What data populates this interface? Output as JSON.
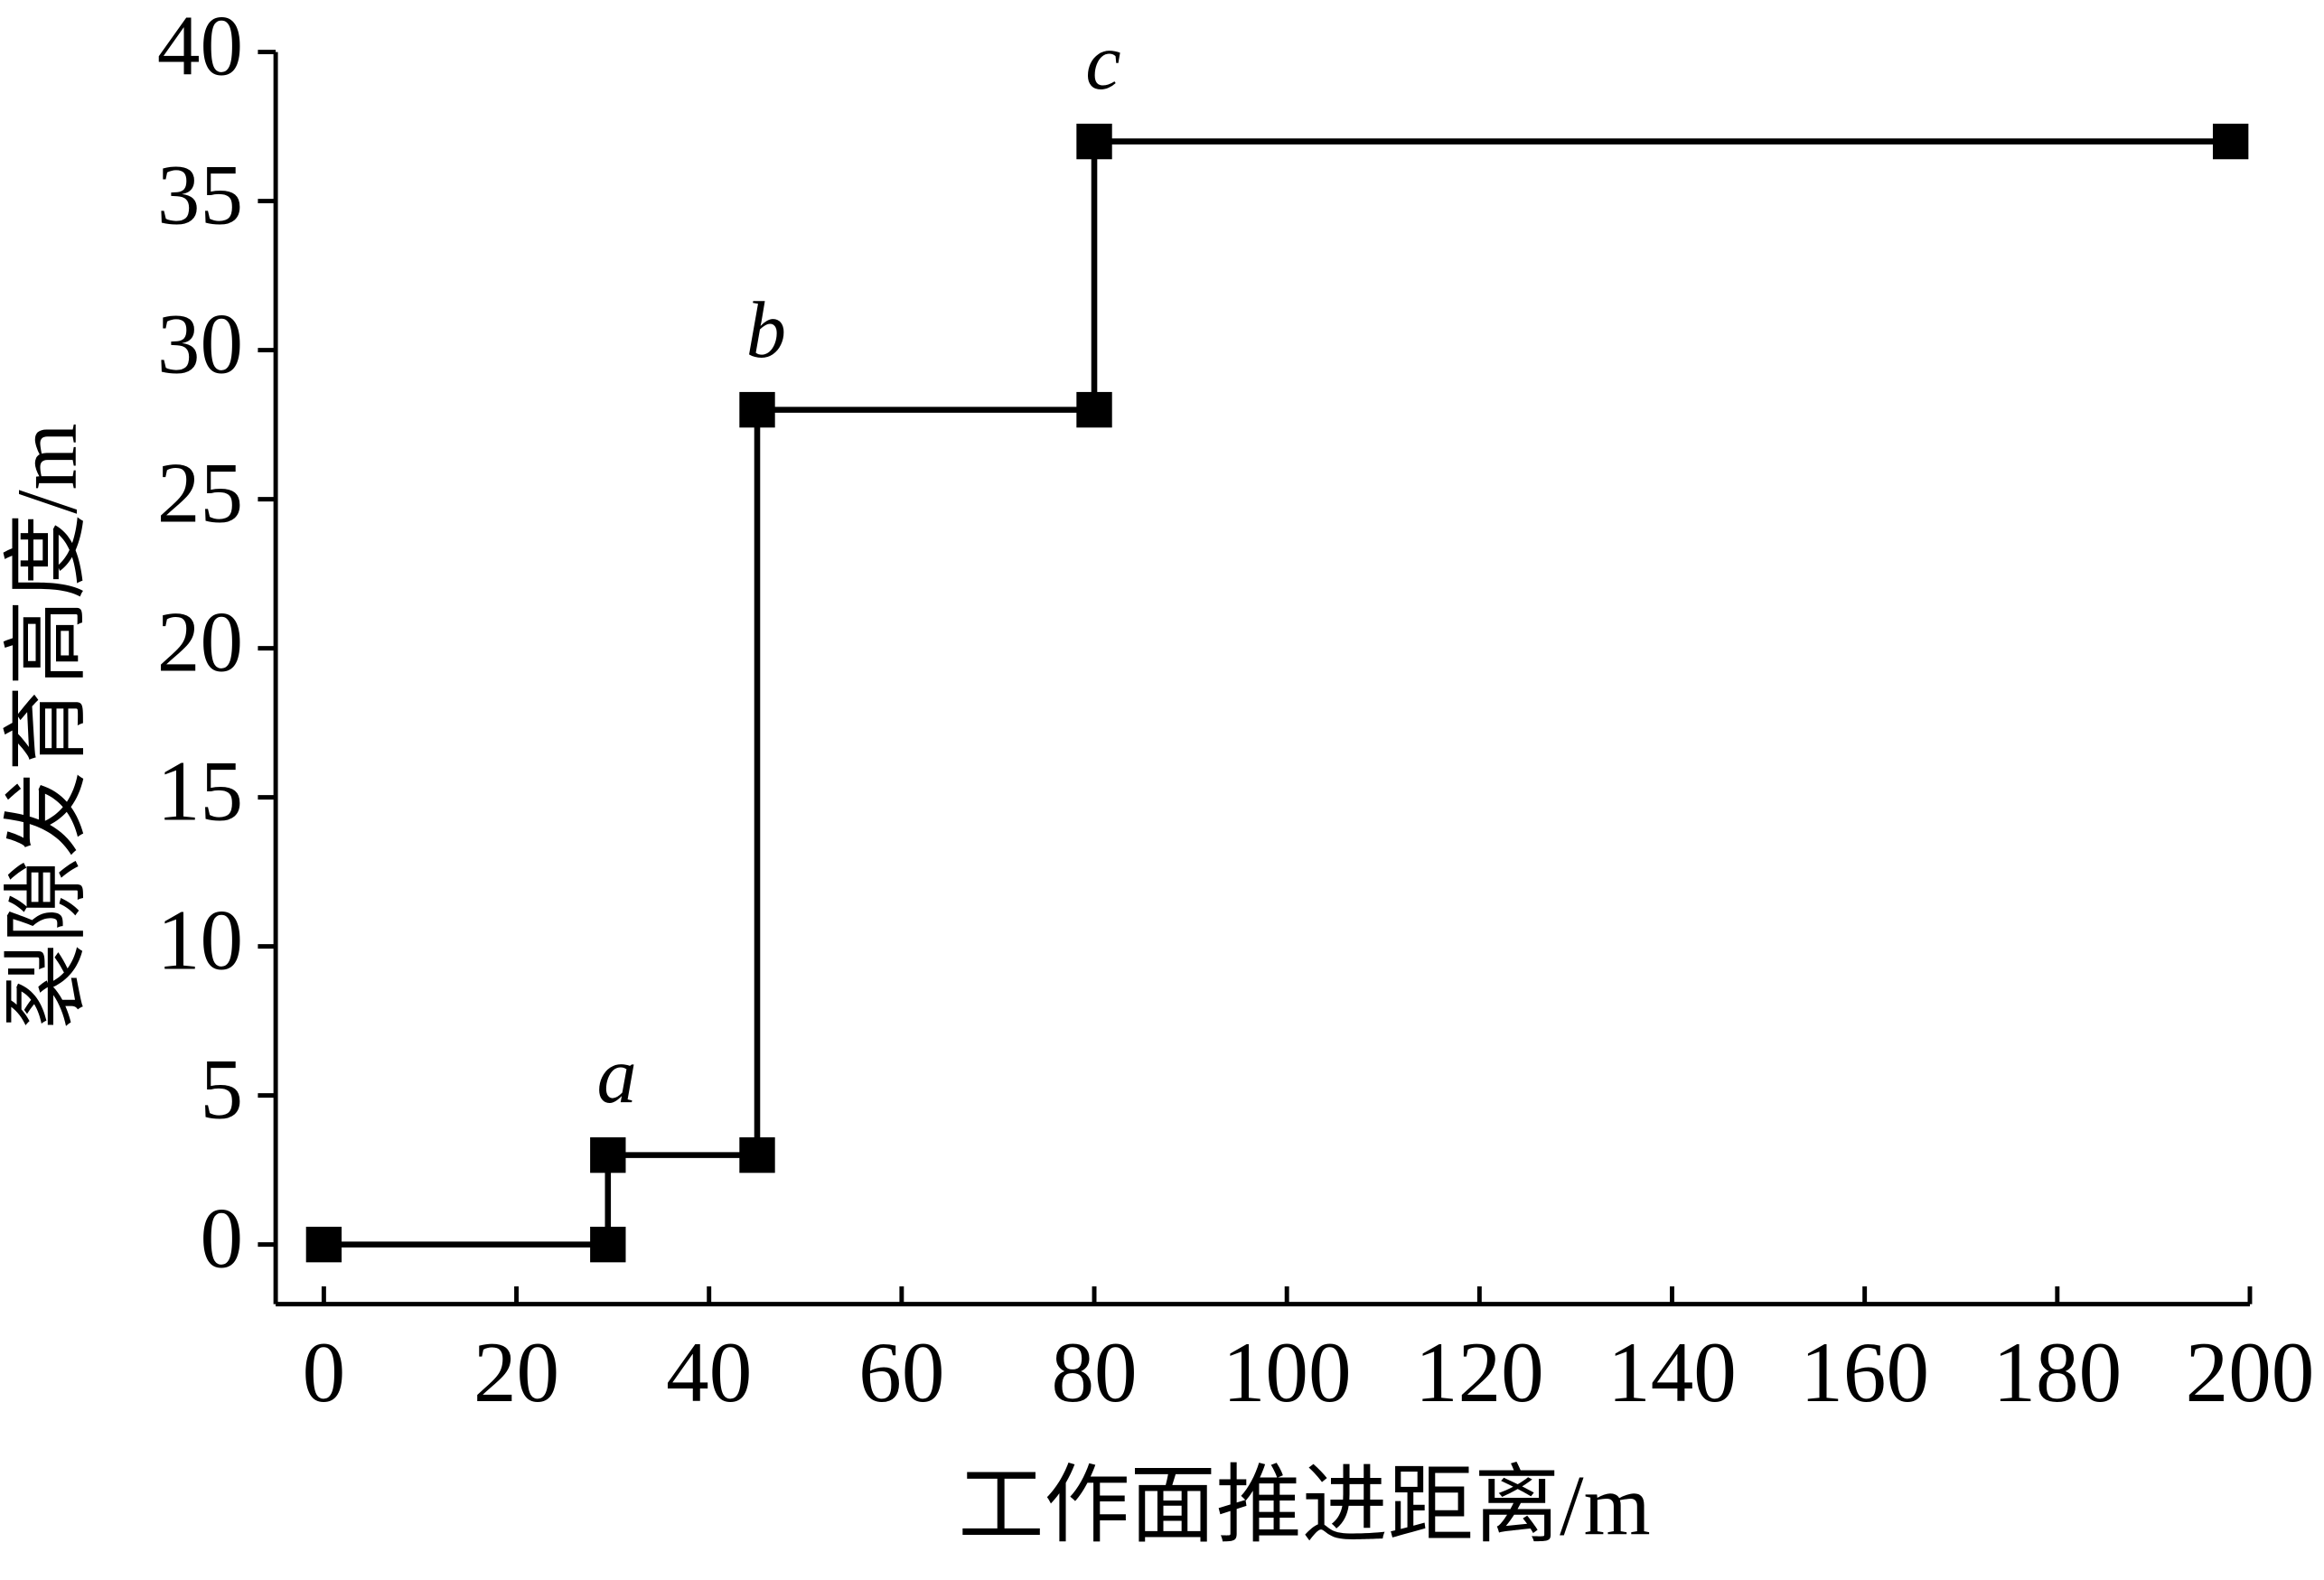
{
  "chart_data": {
    "type": "line",
    "x_label": "工作面推进距离/m",
    "y_label": "裂隙发育高度/m",
    "x": [
      0,
      29.5,
      29.5,
      45,
      45,
      80,
      80,
      198
    ],
    "series": [
      {
        "name": null,
        "color": "#000000",
        "marker": "square",
        "values": [
          0,
          0,
          3,
          3,
          28,
          28,
          37,
          37
        ]
      }
    ],
    "annotations": [
      "a",
      "b",
      "c"
    ],
    "xlim": [
      -5,
      200
    ],
    "ylim": [
      -2,
      40
    ],
    "xticks": [
      0,
      20,
      40,
      60,
      80,
      100,
      120,
      140,
      160,
      180,
      200
    ],
    "yticks": [
      0,
      5,
      10,
      15,
      20,
      25,
      30,
      35,
      40
    ],
    "grid": false
  }
}
